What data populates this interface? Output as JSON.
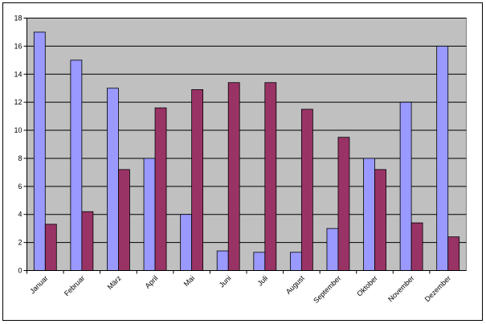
{
  "chart_data": {
    "type": "bar",
    "categories": [
      "Januar",
      "Februar",
      "März",
      "April",
      "Mai",
      "Juni",
      "Juli",
      "August",
      "September",
      "Oktober",
      "November",
      "Dezember"
    ],
    "series": [
      {
        "color": "#9999ff",
        "values": [
          17,
          15,
          13,
          8,
          4,
          1.4,
          1.3,
          1.3,
          3,
          8,
          12,
          16
        ]
      },
      {
        "color": "#993366",
        "values": [
          3.3,
          4.2,
          7.2,
          11.6,
          12.9,
          13.4,
          13.4,
          11.5,
          9.5,
          7.2,
          3.4,
          2.4
        ]
      }
    ],
    "ylim": [
      0,
      18
    ],
    "yticks": [
      0,
      2,
      4,
      6,
      8,
      10,
      12,
      14,
      16,
      18
    ],
    "grid": true,
    "plot_background": "#c0c0c0"
  }
}
